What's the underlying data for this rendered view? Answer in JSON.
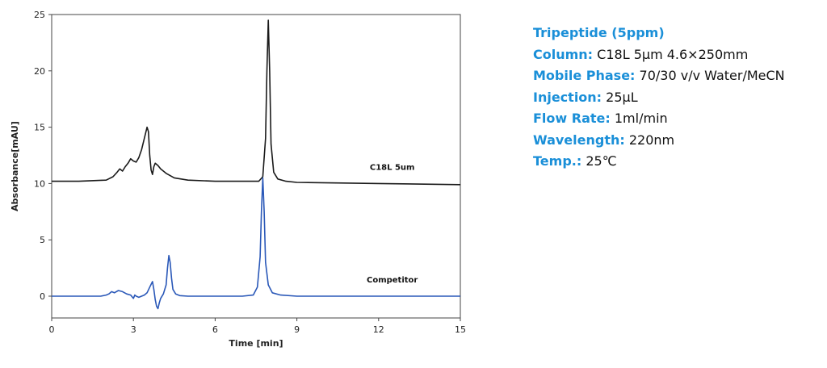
{
  "colors": {
    "trace_c18l": "#1a1a1a",
    "trace_competitor": "#2a58b8",
    "label_key": "#1a8fd8"
  },
  "info": {
    "title": "Tripeptide (5ppm)",
    "column_key": "Column:",
    "column_val": "C18L 5μm 4.6×250mm",
    "mobile_key": "Mobile Phase:",
    "mobile_val": "70/30 v/v Water/MeCN",
    "injection_key": "Injection:",
    "injection_val": "25μL",
    "flow_key": "Flow Rate:",
    "flow_val": "1ml/min",
    "wave_key": "Wavelength:",
    "wave_val": "220nm",
    "temp_key": "Temp.:",
    "temp_val": "25℃"
  },
  "chart_data": {
    "type": "line",
    "title": "",
    "xlabel": "Time [min]",
    "ylabel": "Absorbance[mAU]",
    "xlim": [
      0,
      15
    ],
    "ylim": [
      -1,
      25
    ],
    "xticks": [
      "0",
      "3",
      "6",
      "9",
      "12",
      "15"
    ],
    "yticks": [
      "0",
      "5",
      "10",
      "15",
      "20",
      "25"
    ],
    "grid": false,
    "series": [
      {
        "name": "C18L 5um",
        "color": "#1a1a1a",
        "x": [
          0,
          1.0,
          2.0,
          2.25,
          2.4,
          2.5,
          2.6,
          2.7,
          2.8,
          2.9,
          3.0,
          3.1,
          3.2,
          3.3,
          3.4,
          3.5,
          3.55,
          3.6,
          3.65,
          3.7,
          3.75,
          3.8,
          3.9,
          4.0,
          4.2,
          4.5,
          5.0,
          6.0,
          7.0,
          7.6,
          7.75,
          7.85,
          7.9,
          7.95,
          8.0,
          8.05,
          8.15,
          8.3,
          8.6,
          9.0,
          12.0,
          15.0
        ],
        "y": [
          10.2,
          10.2,
          10.3,
          10.6,
          11.0,
          11.3,
          11.1,
          11.5,
          11.8,
          12.2,
          12.0,
          11.9,
          12.3,
          13.0,
          14.0,
          15.0,
          14.6,
          12.5,
          11.2,
          10.8,
          11.5,
          11.8,
          11.6,
          11.3,
          10.9,
          10.5,
          10.3,
          10.2,
          10.2,
          10.2,
          10.6,
          14.0,
          20.0,
          24.5,
          20.0,
          13.5,
          11.0,
          10.4,
          10.2,
          10.1,
          10.0,
          9.9
        ]
      },
      {
        "name": "Competitor",
        "color": "#2a58b8",
        "x": [
          0,
          1.0,
          1.8,
          2.0,
          2.1,
          2.2,
          2.3,
          2.45,
          2.6,
          2.75,
          2.9,
          3.0,
          3.05,
          3.1,
          3.2,
          3.4,
          3.5,
          3.6,
          3.7,
          3.75,
          3.8,
          3.85,
          3.9,
          3.95,
          4.0,
          4.1,
          4.2,
          4.25,
          4.3,
          4.35,
          4.4,
          4.45,
          4.55,
          4.7,
          5.0,
          6.0,
          7.0,
          7.4,
          7.55,
          7.65,
          7.7,
          7.75,
          7.8,
          7.85,
          7.95,
          8.1,
          8.4,
          9.0,
          12.0,
          15.0
        ],
        "y": [
          0,
          0,
          0,
          0.1,
          0.2,
          0.4,
          0.3,
          0.5,
          0.4,
          0.2,
          0.1,
          -0.2,
          0.1,
          0.0,
          -0.1,
          0.1,
          0.3,
          0.8,
          1.3,
          0.6,
          -0.3,
          -0.9,
          -1.1,
          -0.6,
          -0.2,
          0.2,
          1.0,
          2.5,
          3.6,
          3.0,
          1.6,
          0.6,
          0.2,
          0.05,
          0.0,
          0.0,
          0.0,
          0.1,
          0.8,
          3.5,
          7.5,
          10.5,
          7.5,
          3.0,
          1.0,
          0.3,
          0.1,
          0.0,
          0.0,
          0.0
        ]
      }
    ],
    "annotations": [
      {
        "text": "C18L 5um",
        "x": 12.5,
        "y": 11.2
      },
      {
        "text": "Competitor",
        "x": 12.5,
        "y": 1.2
      }
    ]
  }
}
